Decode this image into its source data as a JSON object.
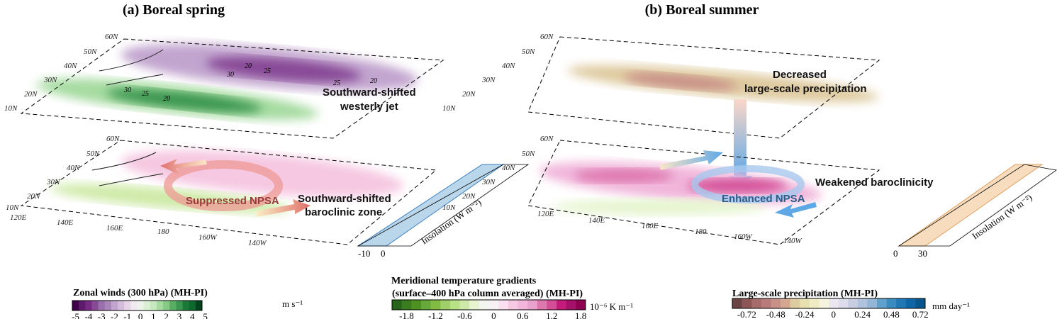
{
  "panels": [
    {
      "title": "(a) Boreal spring",
      "top_annotation": [
        "Southward-shifted",
        "westerly jet"
      ],
      "bottom_annotation": [
        "Southward-shifted",
        "baroclinic zone"
      ],
      "circulation_label": "Suppressed NPSA",
      "insolation_label": "Insolation (W m⁻²)",
      "insolation_ticks": [
        "-10",
        "0"
      ],
      "contour_labels": [
        "20",
        "25",
        "30",
        "30",
        "25",
        "20",
        "25",
        "20"
      ]
    },
    {
      "title": "(b) Boreal summer",
      "top_annotation": [
        "Decreased",
        "large-scale precipitation"
      ],
      "bottom_annotation": [
        "Weakened baroclinicity"
      ],
      "circulation_label": "Enhanced NPSA",
      "insolation_label": "Insolation (W m⁻²)",
      "insolation_ticks": [
        "0",
        "30"
      ]
    }
  ],
  "lat_labels": [
    "60N",
    "50N",
    "40N",
    "30N",
    "20N",
    "10N"
  ],
  "lon_labels": [
    "120E",
    "140E",
    "160E",
    "180",
    "160W",
    "140W"
  ],
  "colorbars": [
    {
      "title": "Zonal winds (300 hPa) (MH-PI)",
      "unit": "m s⁻¹",
      "ticks": [
        "-5",
        "-4",
        "-3",
        "-2",
        "-1",
        "0",
        "1",
        "2",
        "3",
        "4",
        "5"
      ],
      "colors": [
        "#40004b",
        "#5e1a6b",
        "#762a83",
        "#874a96",
        "#9970ab",
        "#a985bb",
        "#c2a5cf",
        "#d3bcdc",
        "#e7d4e8",
        "#f1e9f2",
        "#edf3ea",
        "#d9f0d3",
        "#c5e8bf",
        "#a6dba0",
        "#86c985",
        "#5aae61",
        "#3a9650",
        "#1b7837",
        "#0f6a2d",
        "#00441b"
      ]
    },
    {
      "title_line1": "Meridional temperature gradients",
      "title_line2": "(surface–400 hPa column averaged) (MH-PI)",
      "unit": "10⁻⁶ K m⁻¹",
      "ticks": [
        "-1.8",
        "-1.2",
        "-0.6",
        "0",
        "0.6",
        "1.2",
        "1.8"
      ],
      "colors": [
        "#276419",
        "#3a7d1f",
        "#4d9221",
        "#66a83a",
        "#7fbc41",
        "#a0cf6a",
        "#b8e186",
        "#cfeaa8",
        "#e6f5d0",
        "#f3f6ee",
        "#f7f1f4",
        "#fde0ef",
        "#f6c8e2",
        "#f1b6da",
        "#e9a2cc",
        "#de77ae",
        "#d34e97",
        "#c51b7d",
        "#a4106a",
        "#8e0152"
      ]
    },
    {
      "title": "Large-scale precipitation (MH-PI)",
      "unit": "mm day⁻¹",
      "ticks": [
        "-0.72",
        "-0.48",
        "-0.24",
        "0",
        "0.24",
        "0.48",
        "0.72"
      ],
      "colors": [
        "#6b4444",
        "#8c5656",
        "#a56b6b",
        "#b97a7a",
        "#c99088",
        "#d4a890",
        "#dfcba0",
        "#e8e0b0",
        "#efecc4",
        "#f6f4dc",
        "#ebe6f0",
        "#dcdcec",
        "#c8cde3",
        "#b0c2dc",
        "#93b5d6",
        "#5fa0cc",
        "#3a8cc0",
        "#1f78b4",
        "#0f66a6",
        "#07558c"
      ]
    }
  ],
  "colors": {
    "green_anom": "#1b7837",
    "purple_anom": "#762a83",
    "pink_anom": "#de77ae",
    "brown_anom": "#a56b6b",
    "insol_neg": "#b9d6ea",
    "insol_pos": "#f7dcbd",
    "arrow_red": "#e88a80",
    "arrow_blue": "#5fa8e6"
  }
}
